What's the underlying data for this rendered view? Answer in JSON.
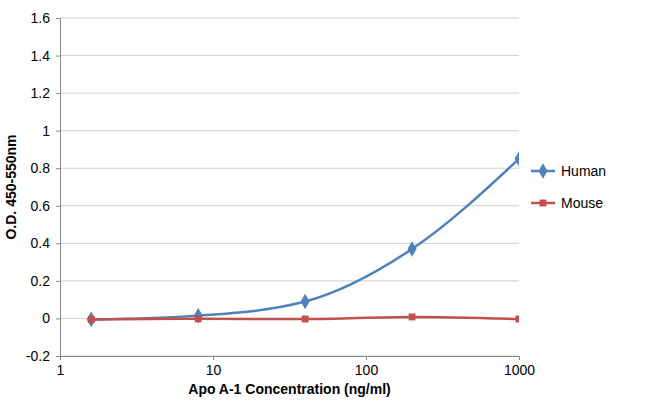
{
  "chart_data": {
    "type": "line",
    "x_label": "Apo A-1 Concentration (ng/ml)",
    "y_label": "O.D. 450-550nm",
    "x": [
      1.6,
      8,
      40,
      200,
      1000
    ],
    "series": [
      {
        "name": "Human",
        "color": "#4f81bd",
        "marker": "diamond",
        "values": [
          -0.005,
          0.015,
          0.09,
          0.37,
          0.85
        ]
      },
      {
        "name": "Mouse",
        "color": "#c0504d",
        "marker": "square",
        "values": [
          -0.005,
          -0.002,
          -0.003,
          0.008,
          -0.003
        ]
      }
    ],
    "log": "x",
    "xlim": [
      1,
      1000
    ],
    "xticks": [
      1,
      10,
      100,
      1000
    ],
    "ylim": [
      -0.2,
      1.6
    ],
    "yticks": [
      -0.2,
      0,
      0.2,
      0.4,
      0.6,
      0.8,
      1,
      1.2,
      1.4,
      1.6
    ],
    "grid": true,
    "legend": "right"
  }
}
